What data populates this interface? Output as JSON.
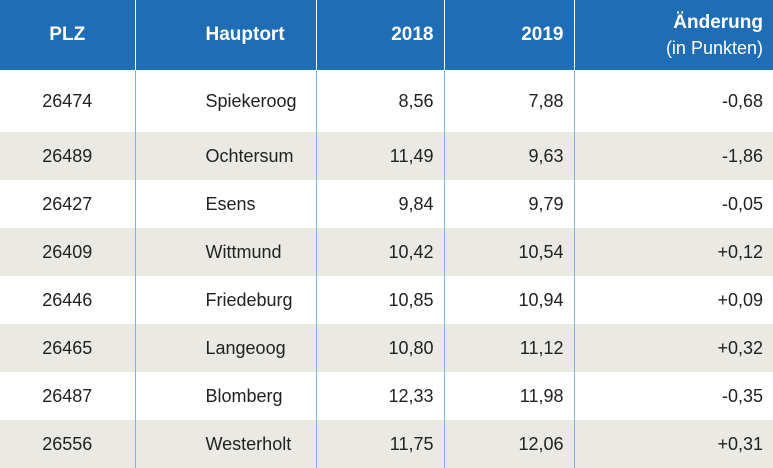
{
  "header": {
    "plz": "PLZ",
    "ort": "Hauptort",
    "y2018": "2018",
    "y2019": "2019",
    "change": "Änderung",
    "change_sub": "(in Punkten)"
  },
  "rows": [
    {
      "plz": "26474",
      "ort": "Spiekeroog",
      "y2018": "8,56",
      "y2019": "7,88",
      "change": "-0,68"
    },
    {
      "plz": "26489",
      "ort": "Ochtersum",
      "y2018": "11,49",
      "y2019": "9,63",
      "change": "-1,86"
    },
    {
      "plz": "26427",
      "ort": "Esens",
      "y2018": "9,84",
      "y2019": "9,79",
      "change": "-0,05"
    },
    {
      "plz": "26409",
      "ort": "Wittmund",
      "y2018": "10,42",
      "y2019": "10,54",
      "change": "+0,12"
    },
    {
      "plz": "26446",
      "ort": "Friedeburg",
      "y2018": "10,85",
      "y2019": "10,94",
      "change": "+0,09"
    },
    {
      "plz": "26465",
      "ort": "Langeoog",
      "y2018": "10,80",
      "y2019": "11,12",
      "change": "+0,32"
    },
    {
      "plz": "26487",
      "ort": "Blomberg",
      "y2018": "12,33",
      "y2019": "11,98",
      "change": "-0,35"
    },
    {
      "plz": "26556",
      "ort": "Westerholt",
      "y2018": "11,75",
      "y2019": "12,06",
      "change": "+0,31"
    }
  ],
  "colors": {
    "header_bg": "#1f6db5",
    "stripe_bg": "#ebe9e4",
    "divider": "#7fb3dc"
  }
}
